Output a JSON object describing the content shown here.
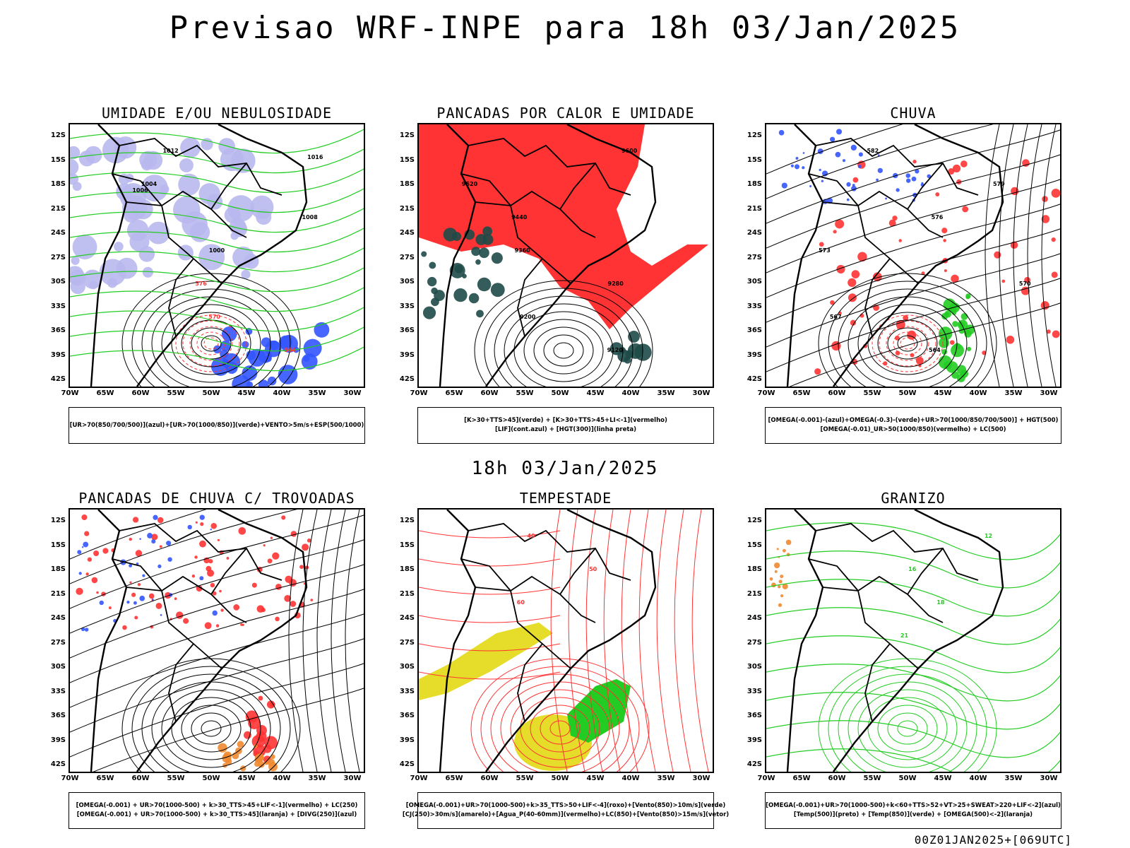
{
  "title": "Previsao WRF-INPE  para 18h 03/Jan/2025",
  "mid_date": "18h 03/Jan/2025",
  "footer": "00Z01JAN2025+[069UTC]",
  "lat_labels": [
    "12S",
    "15S",
    "18S",
    "21S",
    "24S",
    "27S",
    "30S",
    "33S",
    "36S",
    "39S",
    "42S"
  ],
  "lon_labels": [
    "70W",
    "65W",
    "60W",
    "55W",
    "50W",
    "45W",
    "40W",
    "35W",
    "30W"
  ],
  "colors": {
    "green": "#22cc22",
    "red": "#ff3333",
    "blue": "#3355ff",
    "lavender": "#b8b8ee",
    "yellow": "#e6dd2a",
    "orange": "#f08a30",
    "dark": "#1e4a48",
    "purple": "#aa22cc"
  },
  "panels": [
    {
      "id": "umidade",
      "title": "UMIDADE E/OU NEBULOSIDADE",
      "legend": [
        "[UR>70(850/700/500)](azul)+[UR>70(1000/850)](verde)+VENTO>5m/s+ESP(500/1000)"
      ],
      "contour_labels": [
        "1012",
        "1004",
        "1008",
        "1000",
        "576",
        "570",
        "564",
        "1016",
        "1006"
      ]
    },
    {
      "id": "pancadas-calor",
      "title": "PANCADAS POR CALOR E UMIDADE",
      "legend": [
        "[K>30+TTS>45](verde) + [K>30+TTS>45+LI<-1](vermelho)",
        "[LIF](cont.azul) + [HGT(300)](linha preta)"
      ],
      "contour_labels": [
        "9600",
        "9520",
        "9440",
        "9360",
        "9280",
        "9200",
        "9120"
      ]
    },
    {
      "id": "chuva",
      "title": "CHUVA",
      "legend": [
        "[OMEGA(-0.001)-(azul)+OMEGA(-0.3)-(verde)+UR>70(1000/850/700/500)] + HGT(500)",
        "[OMEGA(-0.01)_UR>50(1000/850)(vermelho) + LC(500)"
      ],
      "contour_labels": [
        "582",
        "579",
        "576",
        "573",
        "570",
        "567",
        "564"
      ]
    },
    {
      "id": "pancadas-trovoadas",
      "title": "PANCADAS DE CHUVA C/ TROVOADAS",
      "legend": [
        "[OMEGA(-0.001) + UR>70(1000-500) + k>30_TTS>45+LIF<-1](vermelho) + LC(250)",
        "[OMEGA(-0.001) + UR>70(1000-500) + k>30_TTS>45](laranja) + [DIVG(250)](azul)"
      ],
      "contour_labels": []
    },
    {
      "id": "tempestade",
      "title": "TEMPESTADE",
      "legend": [
        "[OMEGA(-0.001)+UR>70(1000-500)+k>35_TTS>50+LIF<-4](roxo)+[Vento(850)>10m/s](verde)",
        "[CJ(250)>30m/s](amarelo)+[Agua_P(40-60mm)](vermelho)+LC(850)+[Vento(850)>15m/s](vetor)"
      ],
      "contour_labels": [
        "40",
        "50",
        "60"
      ]
    },
    {
      "id": "granizo",
      "title": "GRANIZO",
      "legend": [
        "[OMEGA(-0.001)+UR>70(1000-500)+k<60+TTS>52+VT>25+SWEAT>220+LIF<-2](azul)",
        "[Temp(500)](preto) + [Temp(850)](verde) + [OMEGA(500)<-2](laranja)"
      ],
      "contour_labels": [
        "12",
        "16",
        "18",
        "21"
      ]
    }
  ]
}
